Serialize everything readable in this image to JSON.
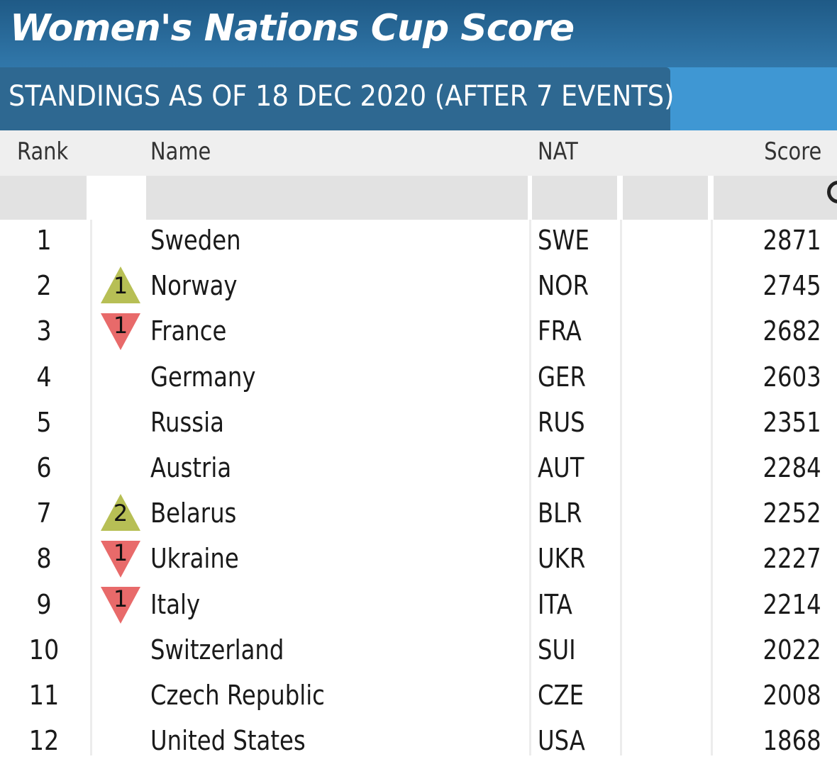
{
  "title": "Women's Nations Cup Score",
  "subtitle": "STANDINGS AS OF 18 DEC 2020 (AFTER 7 EVENTS)",
  "columns": {
    "rank": "Rank",
    "name": "Name",
    "nat": "NAT",
    "score": "Score"
  },
  "colors": {
    "banner": "#2f74a6",
    "tab": "#2e6891",
    "up": "#b7bf55",
    "down": "#e86a6a"
  },
  "rows": [
    {
      "rank": "1",
      "move": "",
      "move_value": "",
      "name": "Sweden",
      "nat": "SWE",
      "score": "2871"
    },
    {
      "rank": "2",
      "move": "up",
      "move_value": "1",
      "name": "Norway",
      "nat": "NOR",
      "score": "2745"
    },
    {
      "rank": "3",
      "move": "down",
      "move_value": "1",
      "name": "France",
      "nat": "FRA",
      "score": "2682"
    },
    {
      "rank": "4",
      "move": "",
      "move_value": "",
      "name": "Germany",
      "nat": "GER",
      "score": "2603"
    },
    {
      "rank": "5",
      "move": "",
      "move_value": "",
      "name": "Russia",
      "nat": "RUS",
      "score": "2351"
    },
    {
      "rank": "6",
      "move": "",
      "move_value": "",
      "name": "Austria",
      "nat": "AUT",
      "score": "2284"
    },
    {
      "rank": "7",
      "move": "up",
      "move_value": "2",
      "name": "Belarus",
      "nat": "BLR",
      "score": "2252"
    },
    {
      "rank": "8",
      "move": "down",
      "move_value": "1",
      "name": "Ukraine",
      "nat": "UKR",
      "score": "2227"
    },
    {
      "rank": "9",
      "move": "down",
      "move_value": "1",
      "name": "Italy",
      "nat": "ITA",
      "score": "2214"
    },
    {
      "rank": "10",
      "move": "",
      "move_value": "",
      "name": "Switzerland",
      "nat": "SUI",
      "score": "2022"
    },
    {
      "rank": "11",
      "move": "",
      "move_value": "",
      "name": "Czech Republic",
      "nat": "CZE",
      "score": "2008"
    },
    {
      "rank": "12",
      "move": "",
      "move_value": "",
      "name": "United States",
      "nat": "USA",
      "score": "1868"
    }
  ]
}
